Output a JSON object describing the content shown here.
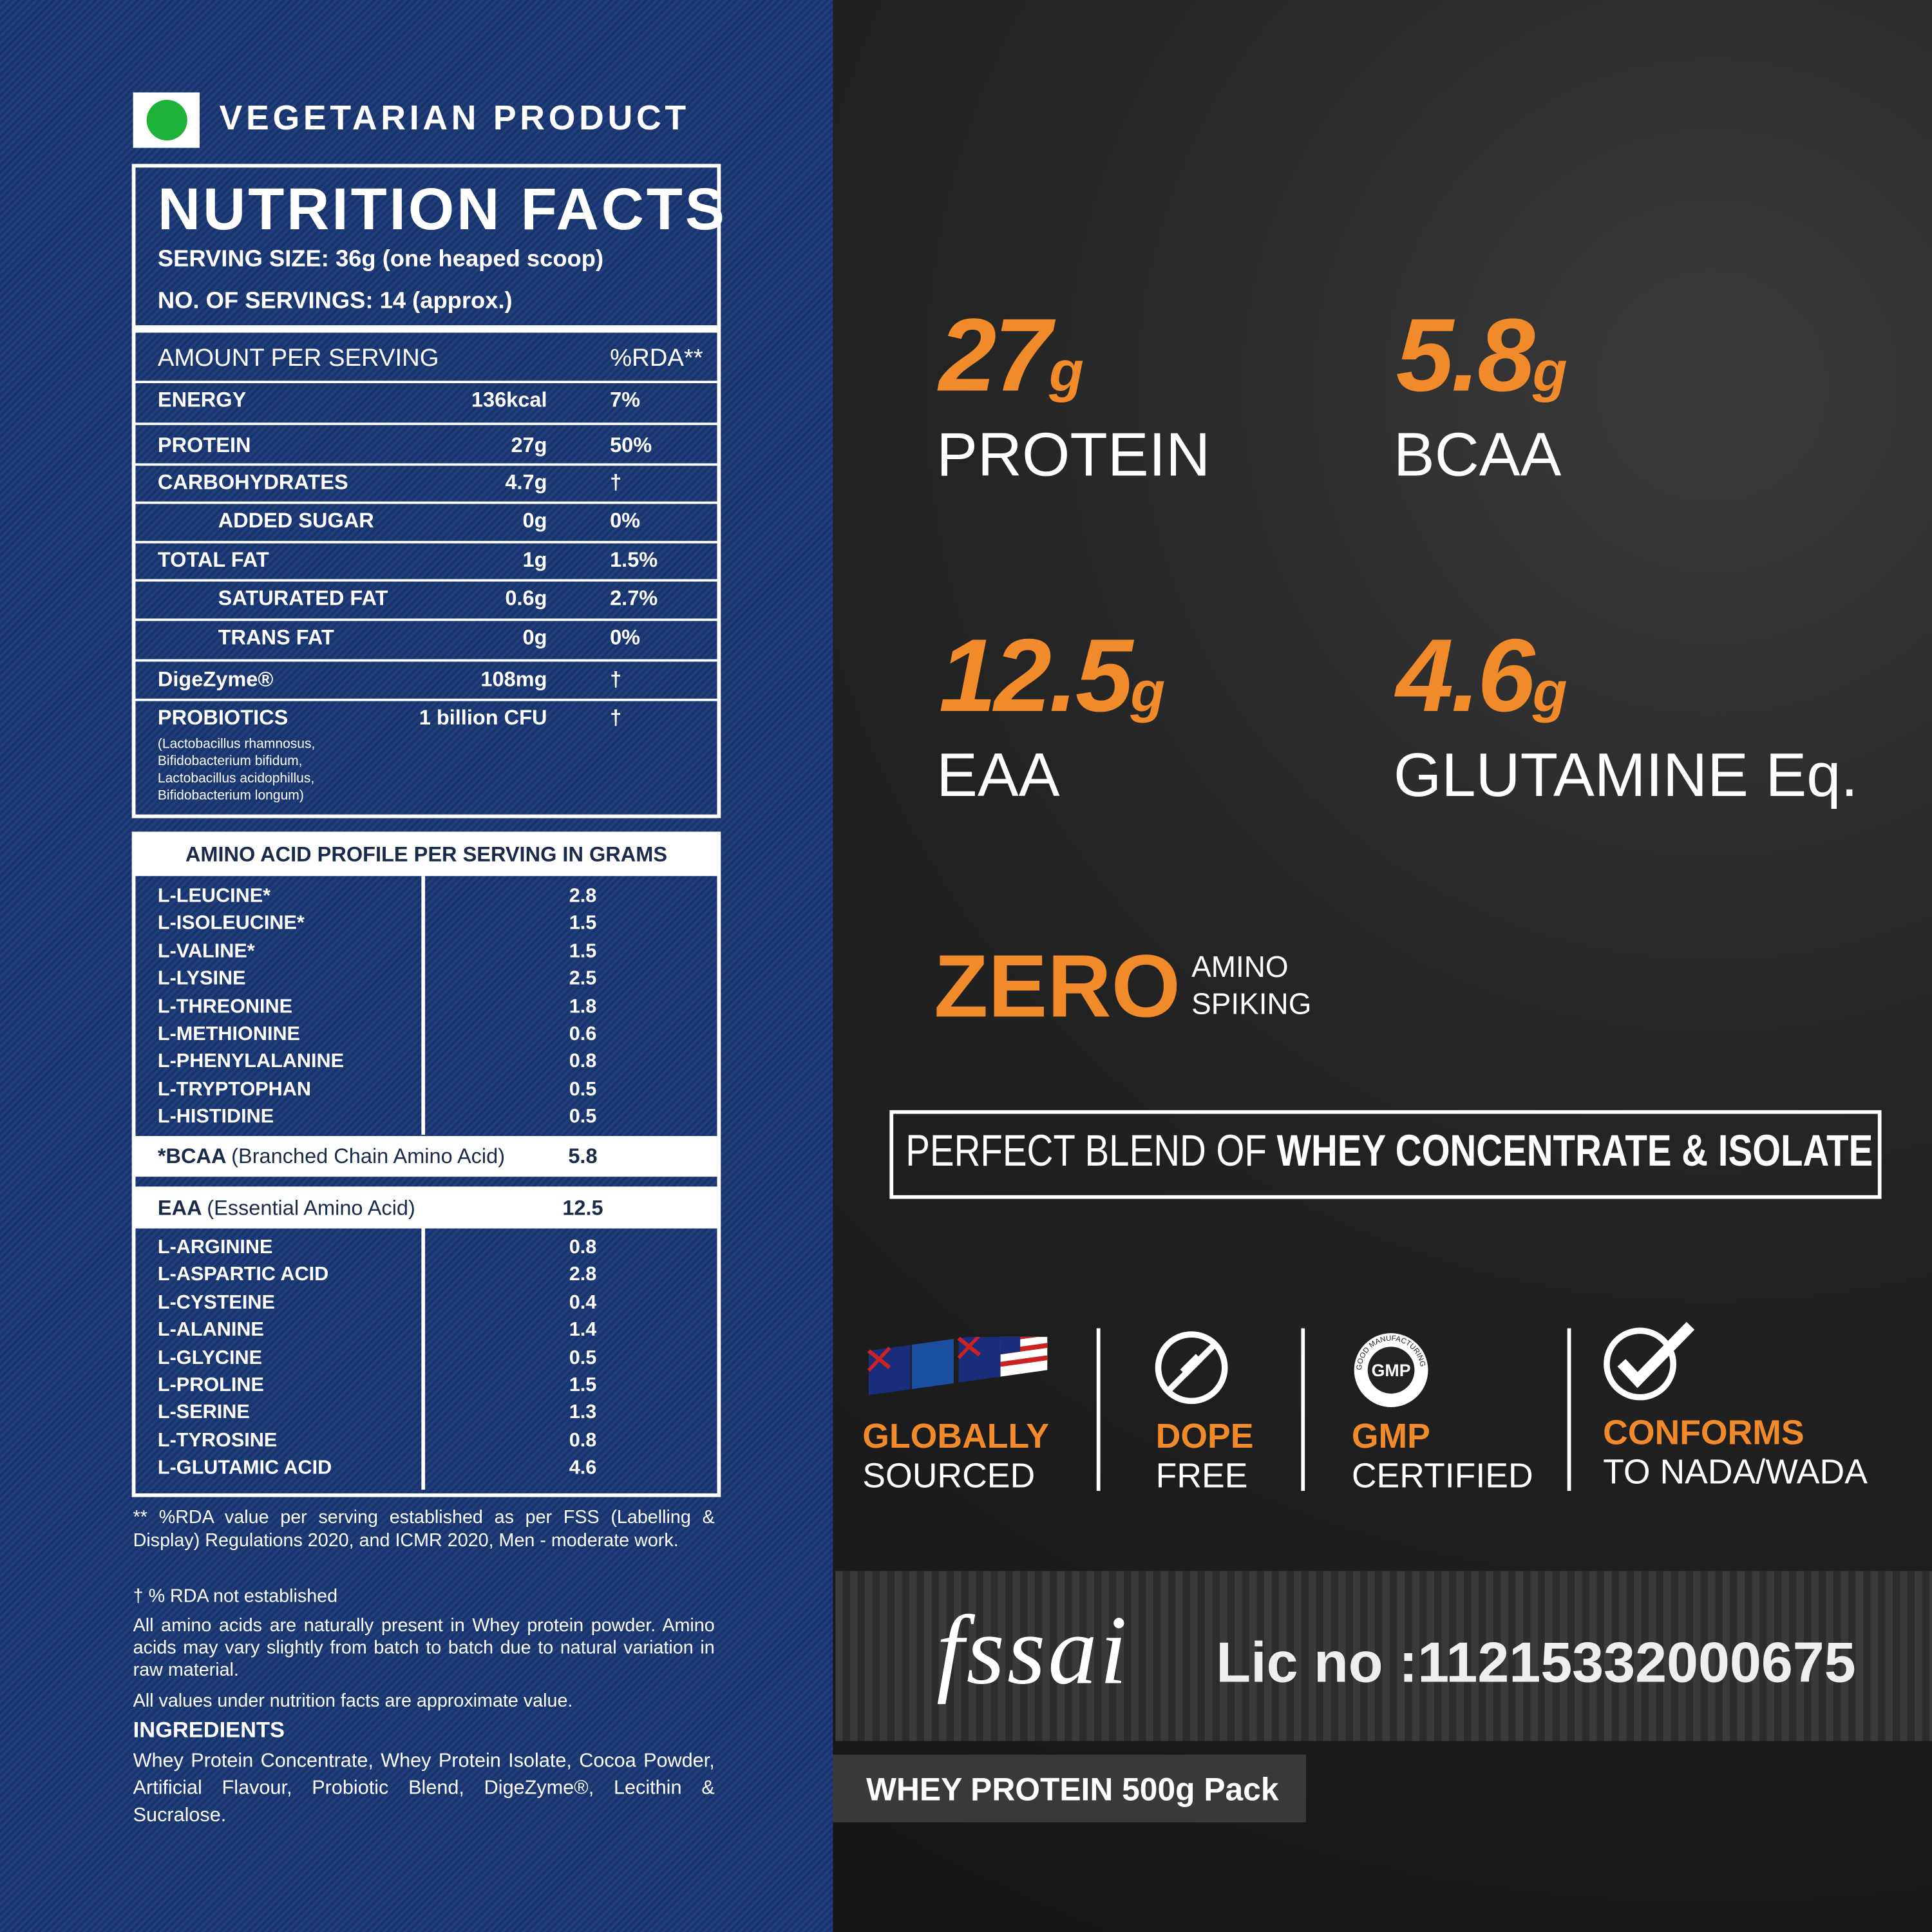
{
  "vegetarian_label": "VEGETARIAN PRODUCT",
  "nutrition": {
    "title": "NUTRITION FACTS",
    "serving_size": "SERVING SIZE: 36g (one heaped scoop)",
    "servings": "NO. OF SERVINGS: 14 (approx.)",
    "header": [
      "AMOUNT PER SERVING",
      "%RDA**"
    ],
    "rows": [
      [
        "ENERGY",
        "136kcal",
        "7%"
      ],
      [
        "PROTEIN",
        "27g",
        "50%"
      ],
      [
        "CARBOHYDRATES",
        "4.7g",
        "†"
      ],
      [
        "ADDED SUGAR",
        "0g",
        "0%"
      ],
      [
        "TOTAL FAT",
        "1g",
        "1.5%"
      ],
      [
        "SATURATED FAT",
        "0.6g",
        "2.7%"
      ],
      [
        "TRANS FAT",
        "0g",
        "0%"
      ],
      [
        "DigeZyme®",
        "108mg",
        "†"
      ],
      [
        "PROBIOTICS",
        "1 billion CFU",
        "†"
      ]
    ],
    "probiotic_strains": "(Lactobacillus rhamnosus, Bifidobacterium bifidum, Lactobacillus acidophillus, Bifidobacterium longum)"
  },
  "amino": {
    "title": "AMINO ACID PROFILE PER SERVING IN GRAMS",
    "essential": [
      [
        "L-LEUCINE*",
        "2.8"
      ],
      [
        "L-ISOLEUCINE*",
        "1.5"
      ],
      [
        "L-VALINE*",
        "1.5"
      ],
      [
        "L-LYSINE",
        "2.5"
      ],
      [
        "L-THREONINE",
        "1.8"
      ],
      [
        "L-METHIONINE",
        "0.6"
      ],
      [
        "L-PHENYLALANINE",
        "0.8"
      ],
      [
        "L-TRYPTOPHAN",
        "0.5"
      ],
      [
        "L-HISTIDINE",
        "0.5"
      ]
    ],
    "bcaa": [
      "*BCAA",
      "(Branched Chain Amino Acid)",
      "5.8"
    ],
    "eaa": [
      "EAA",
      "(Essential Amino Acid)",
      "12.5"
    ],
    "other": [
      [
        "L-ARGININE",
        "0.8"
      ],
      [
        "L-ASPARTIC ACID",
        "2.8"
      ],
      [
        "L-CYSTEINE",
        "0.4"
      ],
      [
        "L-ALANINE",
        "1.4"
      ],
      [
        "L-GLYCINE",
        "0.5"
      ],
      [
        "L-PROLINE",
        "1.5"
      ],
      [
        "L-SERINE",
        "1.3"
      ],
      [
        "L-TYROSINE",
        "0.8"
      ],
      [
        "L-GLUTAMIC ACID",
        "4.6"
      ]
    ]
  },
  "footnotes": [
    "** %RDA value per serving established as per FSS (Labelling & Display) Regulations 2020, and ICMR 2020, Men - moderate work.",
    "† % RDA not established",
    "All amino acids are naturally present in Whey protein powder. Amino acids may vary slightly from batch to batch due to natural variation in raw material.",
    "All values under nutrition facts are approximate value."
  ],
  "ingredients": {
    "title": "INGREDIENTS",
    "text": "Whey Protein Concentrate, Whey Protein Isolate, Cocoa Powder, Artificial Flavour, Probiotic Blend, DigeZyme®, Lecithin & Sucralose."
  },
  "highlights": [
    {
      "value": "27",
      "unit": "g",
      "label": "PROTEIN"
    },
    {
      "value": "5.8",
      "unit": "g",
      "label": "BCAA"
    },
    {
      "value": "12.5",
      "unit": "g",
      "label": "EAA"
    },
    {
      "value": "4.6",
      "unit": "g",
      "label": "GLUTAMINE Eq."
    }
  ],
  "zero": {
    "title": "ZERO",
    "line1": "AMINO",
    "line2": "SPIKING"
  },
  "blend": {
    "lead": "PERFECT BLEND OF ",
    "bold": "WHEY CONCENTRATE & ISOLATE"
  },
  "badges": [
    [
      "GLOBALLY",
      "SOURCED"
    ],
    [
      "DOPE",
      "FREE"
    ],
    [
      "GMP",
      "CERTIFIED"
    ],
    [
      "CONFORMS",
      "TO NADA/WADA"
    ]
  ],
  "gmp_seal": {
    "ring": "GOOD MANUFACTURING PRACTICE",
    "center": "GMP"
  },
  "fssai": {
    "logo": "fssai",
    "license": "Lic no :11215332000675"
  },
  "pack": "WHEY PROTEIN 500g Pack"
}
